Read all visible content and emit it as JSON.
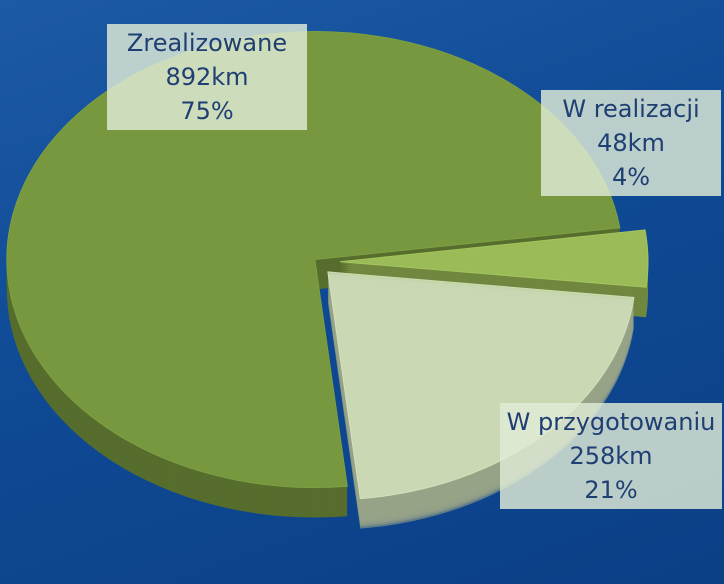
{
  "chart_data": {
    "type": "pie",
    "categories": [
      "Zrealizowane",
      "W realizacji",
      "W przygotowaniu"
    ],
    "values": [
      892,
      48,
      258
    ],
    "value_labels": [
      "892km",
      "48km",
      "258km"
    ],
    "percents": [
      75,
      4,
      21
    ],
    "percent_labels": [
      "75%",
      "4%",
      "21%"
    ],
    "colors": [
      "#77983f",
      "#9bbb59",
      "#d3e2bc"
    ]
  }
}
